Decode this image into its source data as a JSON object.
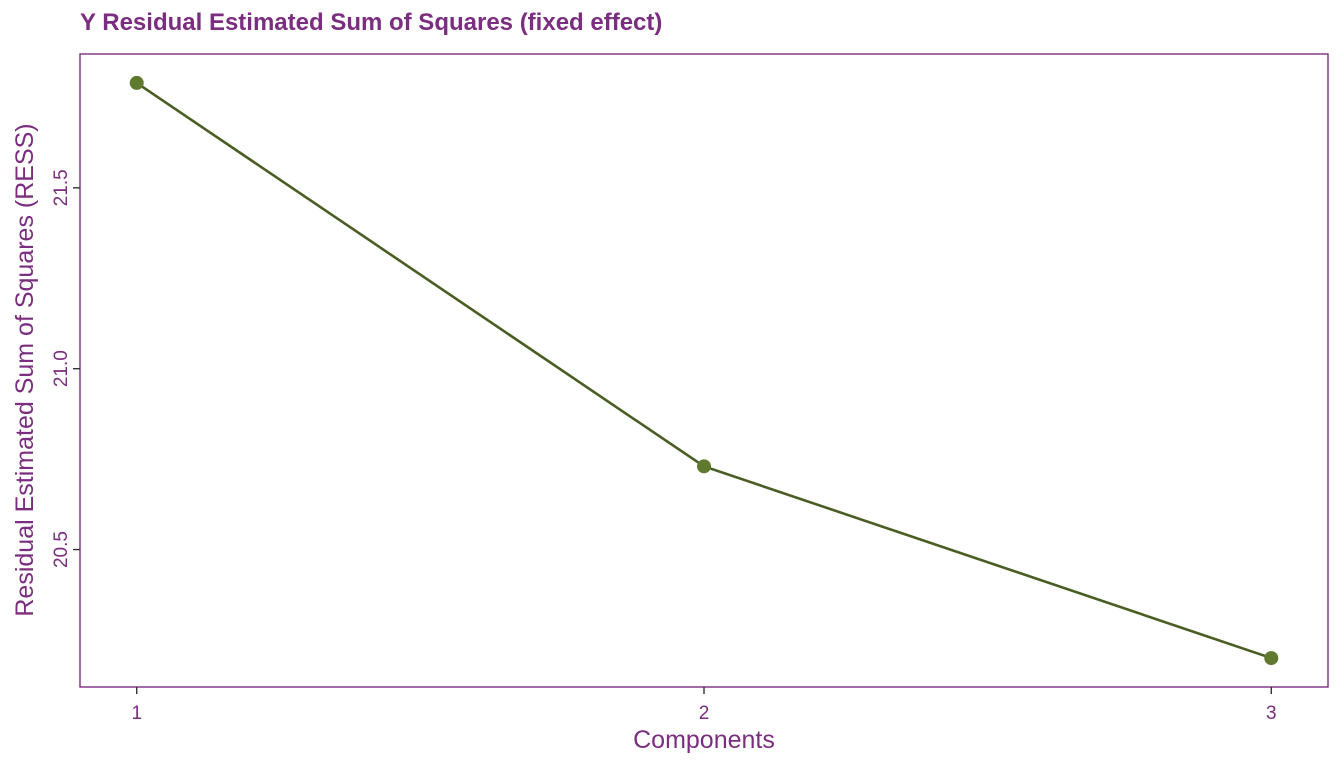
{
  "chart_data": {
    "type": "line",
    "title": "Y Residual Estimated Sum of Squares (fixed effect)",
    "xlabel": "Components",
    "ylabel": "Residual Estimated Sum of Squares (RESS)",
    "x": [
      1,
      2,
      3
    ],
    "series": [
      {
        "values": [
          21.79,
          20.73,
          20.2
        ]
      }
    ],
    "xticks": [
      "1",
      "2",
      "3"
    ],
    "yticks": [
      "20.5",
      "21.0",
      "21.5"
    ],
    "xlim": [
      0.9,
      3.1
    ],
    "ylim": [
      20.12,
      21.87
    ],
    "grid": false,
    "colors": {
      "line": "#4A5E23",
      "point": "#5F7A2E",
      "text": "#7B2D7F",
      "frame": "#7B2D7F"
    }
  }
}
